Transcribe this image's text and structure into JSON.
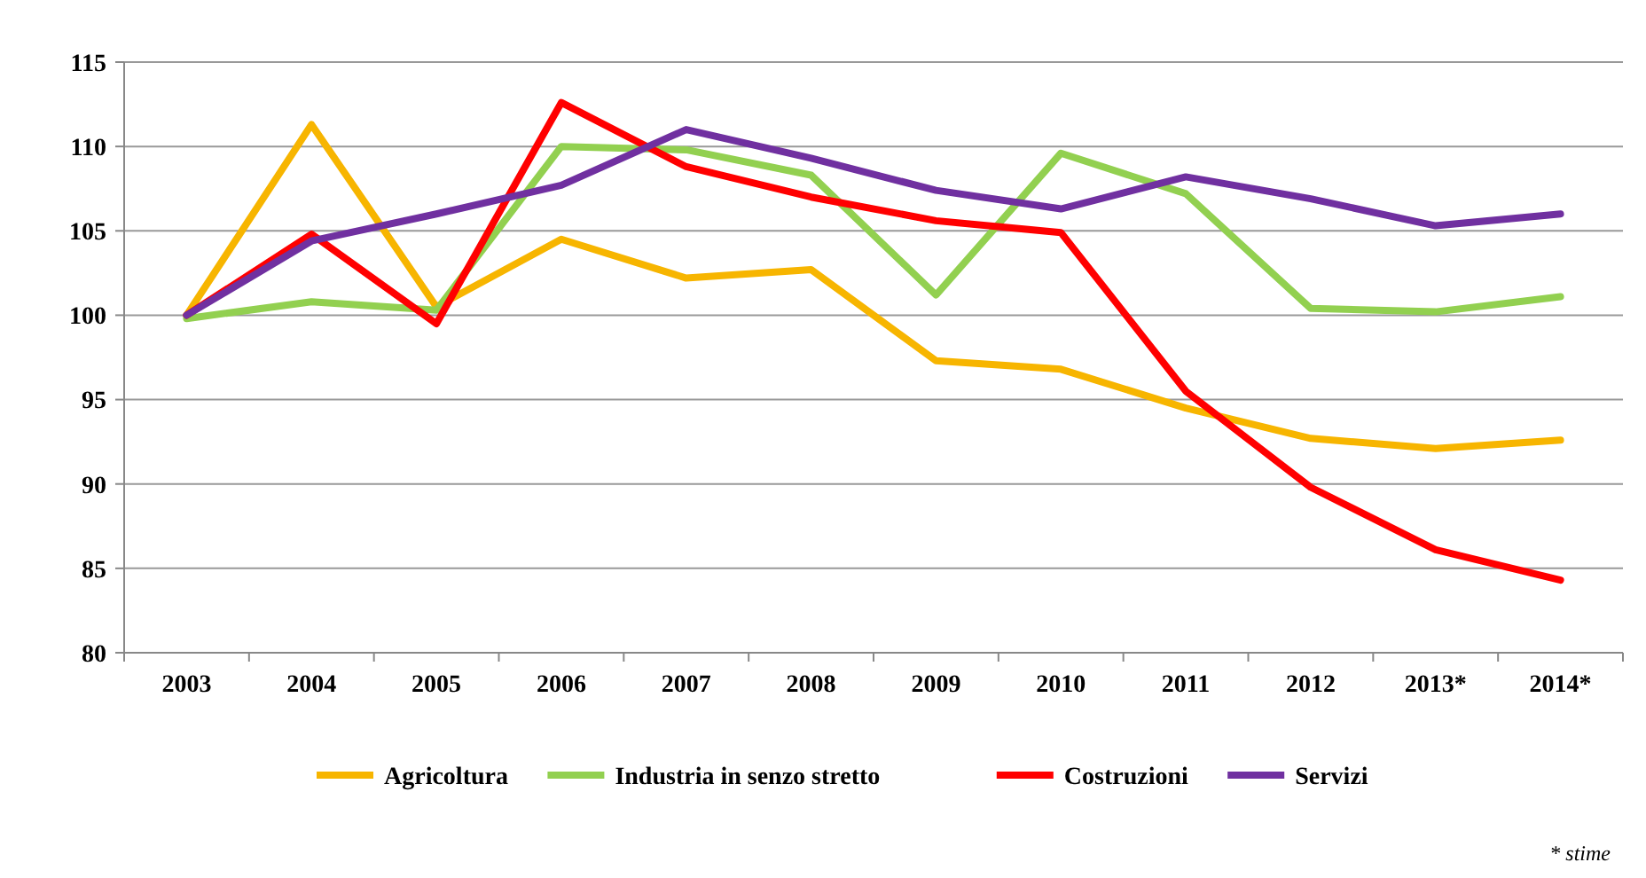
{
  "chart_data": {
    "type": "line",
    "categories": [
      "2003",
      "2004",
      "2005",
      "2006",
      "2007",
      "2008",
      "2009",
      "2010",
      "2011",
      "2012",
      "2013*",
      "2014*"
    ],
    "series": [
      {
        "name": "Agricoltura",
        "color": "#f7b500",
        "values": [
          100,
          111.3,
          100.5,
          104.5,
          102.2,
          102.7,
          97.3,
          96.8,
          94.5,
          92.7,
          92.1,
          92.6
        ]
      },
      {
        "name": "Industria in senzo stretto",
        "color": "#92d050",
        "values": [
          99.8,
          100.8,
          100.3,
          110,
          109.8,
          108.3,
          101.2,
          109.6,
          107.2,
          100.4,
          100.2,
          101.1
        ]
      },
      {
        "name": "Costruzioni",
        "color": "#ff0000",
        "values": [
          100,
          104.8,
          99.5,
          112.6,
          108.8,
          107,
          105.6,
          104.9,
          95.5,
          89.8,
          86.1,
          84.3
        ]
      },
      {
        "name": "Servizi",
        "color": "#7030a0",
        "values": [
          100,
          104.4,
          106,
          107.7,
          111,
          109.3,
          107.4,
          106.3,
          108.2,
          106.9,
          105.3,
          106
        ]
      }
    ],
    "ylim": [
      80,
      115
    ],
    "yticks": [
      80,
      85,
      90,
      95,
      100,
      105,
      110,
      115
    ],
    "grid": "y",
    "legend": "bottom",
    "marker": "none",
    "line_style": "solid",
    "annotations": [
      "* stime"
    ]
  }
}
